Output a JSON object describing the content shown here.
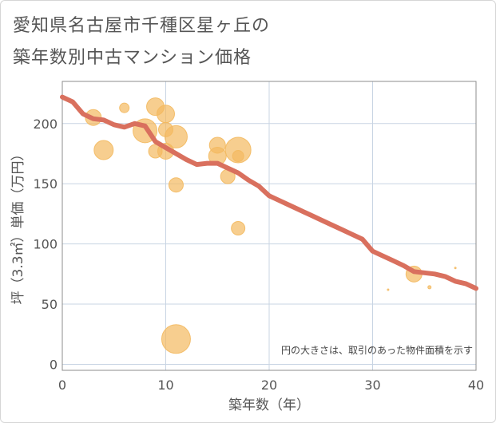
{
  "title_line1": "愛知県名古屋市千種区星ヶ丘の",
  "title_line2": "築年数別中古マンション価格",
  "chart_data": {
    "type": "scatter",
    "title": "愛知県名古屋市千種区星ヶ丘の築年数別中古マンション価格",
    "xlabel": "築年数（年）",
    "ylabel": "坪（3.3㎡）単価（万円）",
    "xlim": [
      0,
      40
    ],
    "ylim": [
      -5,
      235
    ],
    "xticks": [
      0,
      10,
      20,
      30,
      40
    ],
    "yticks": [
      0,
      50,
      100,
      150,
      200
    ],
    "grid": true,
    "annotation": "円の大きさは、取引のあった物件面積を示す",
    "colors": {
      "bubble": "#f3b95f",
      "line": "#d9705e",
      "grid": "#c8d4e3",
      "frame": "#8c8c8c"
    },
    "bubbles": [
      {
        "x": 3,
        "y": 205,
        "size": 20
      },
      {
        "x": 4,
        "y": 178,
        "size": 24
      },
      {
        "x": 6,
        "y": 213,
        "size": 12
      },
      {
        "x": 8,
        "y": 194,
        "size": 30
      },
      {
        "x": 9,
        "y": 214,
        "size": 22
      },
      {
        "x": 9,
        "y": 177,
        "size": 17
      },
      {
        "x": 10,
        "y": 208,
        "size": 22
      },
      {
        "x": 10,
        "y": 195,
        "size": 18
      },
      {
        "x": 10,
        "y": 177,
        "size": 20
      },
      {
        "x": 11,
        "y": 189,
        "size": 28
      },
      {
        "x": 11,
        "y": 149,
        "size": 18
      },
      {
        "x": 11,
        "y": 21,
        "size": 36
      },
      {
        "x": 15,
        "y": 182,
        "size": 20
      },
      {
        "x": 15,
        "y": 173,
        "size": 22
      },
      {
        "x": 16,
        "y": 156,
        "size": 18
      },
      {
        "x": 17,
        "y": 178,
        "size": 32
      },
      {
        "x": 17,
        "y": 173,
        "size": 14
      },
      {
        "x": 17,
        "y": 113,
        "size": 17
      },
      {
        "x": 34,
        "y": 75,
        "size": 20
      },
      {
        "x": 35.5,
        "y": 64,
        "size": 4
      },
      {
        "x": 31.5,
        "y": 62,
        "size": 2
      },
      {
        "x": 38,
        "y": 80,
        "size": 2
      }
    ],
    "trend": {
      "x": [
        0,
        1,
        2,
        3,
        4,
        5,
        6,
        7,
        8,
        9,
        10,
        11,
        12,
        13,
        14,
        15,
        16,
        17,
        18,
        19,
        20,
        21,
        22,
        23,
        24,
        25,
        26,
        27,
        28,
        29,
        30,
        31,
        32,
        33,
        34,
        35,
        36,
        37,
        38,
        39,
        40
      ],
      "y": [
        222,
        218,
        208,
        204,
        203,
        199,
        197,
        200,
        198,
        185,
        180,
        175,
        170,
        166,
        167,
        167,
        163,
        159,
        153,
        148,
        140,
        136,
        132,
        128,
        124,
        120,
        116,
        112,
        108,
        104,
        94,
        90,
        86,
        82,
        77,
        76,
        75,
        73,
        69,
        67,
        63
      ]
    }
  }
}
